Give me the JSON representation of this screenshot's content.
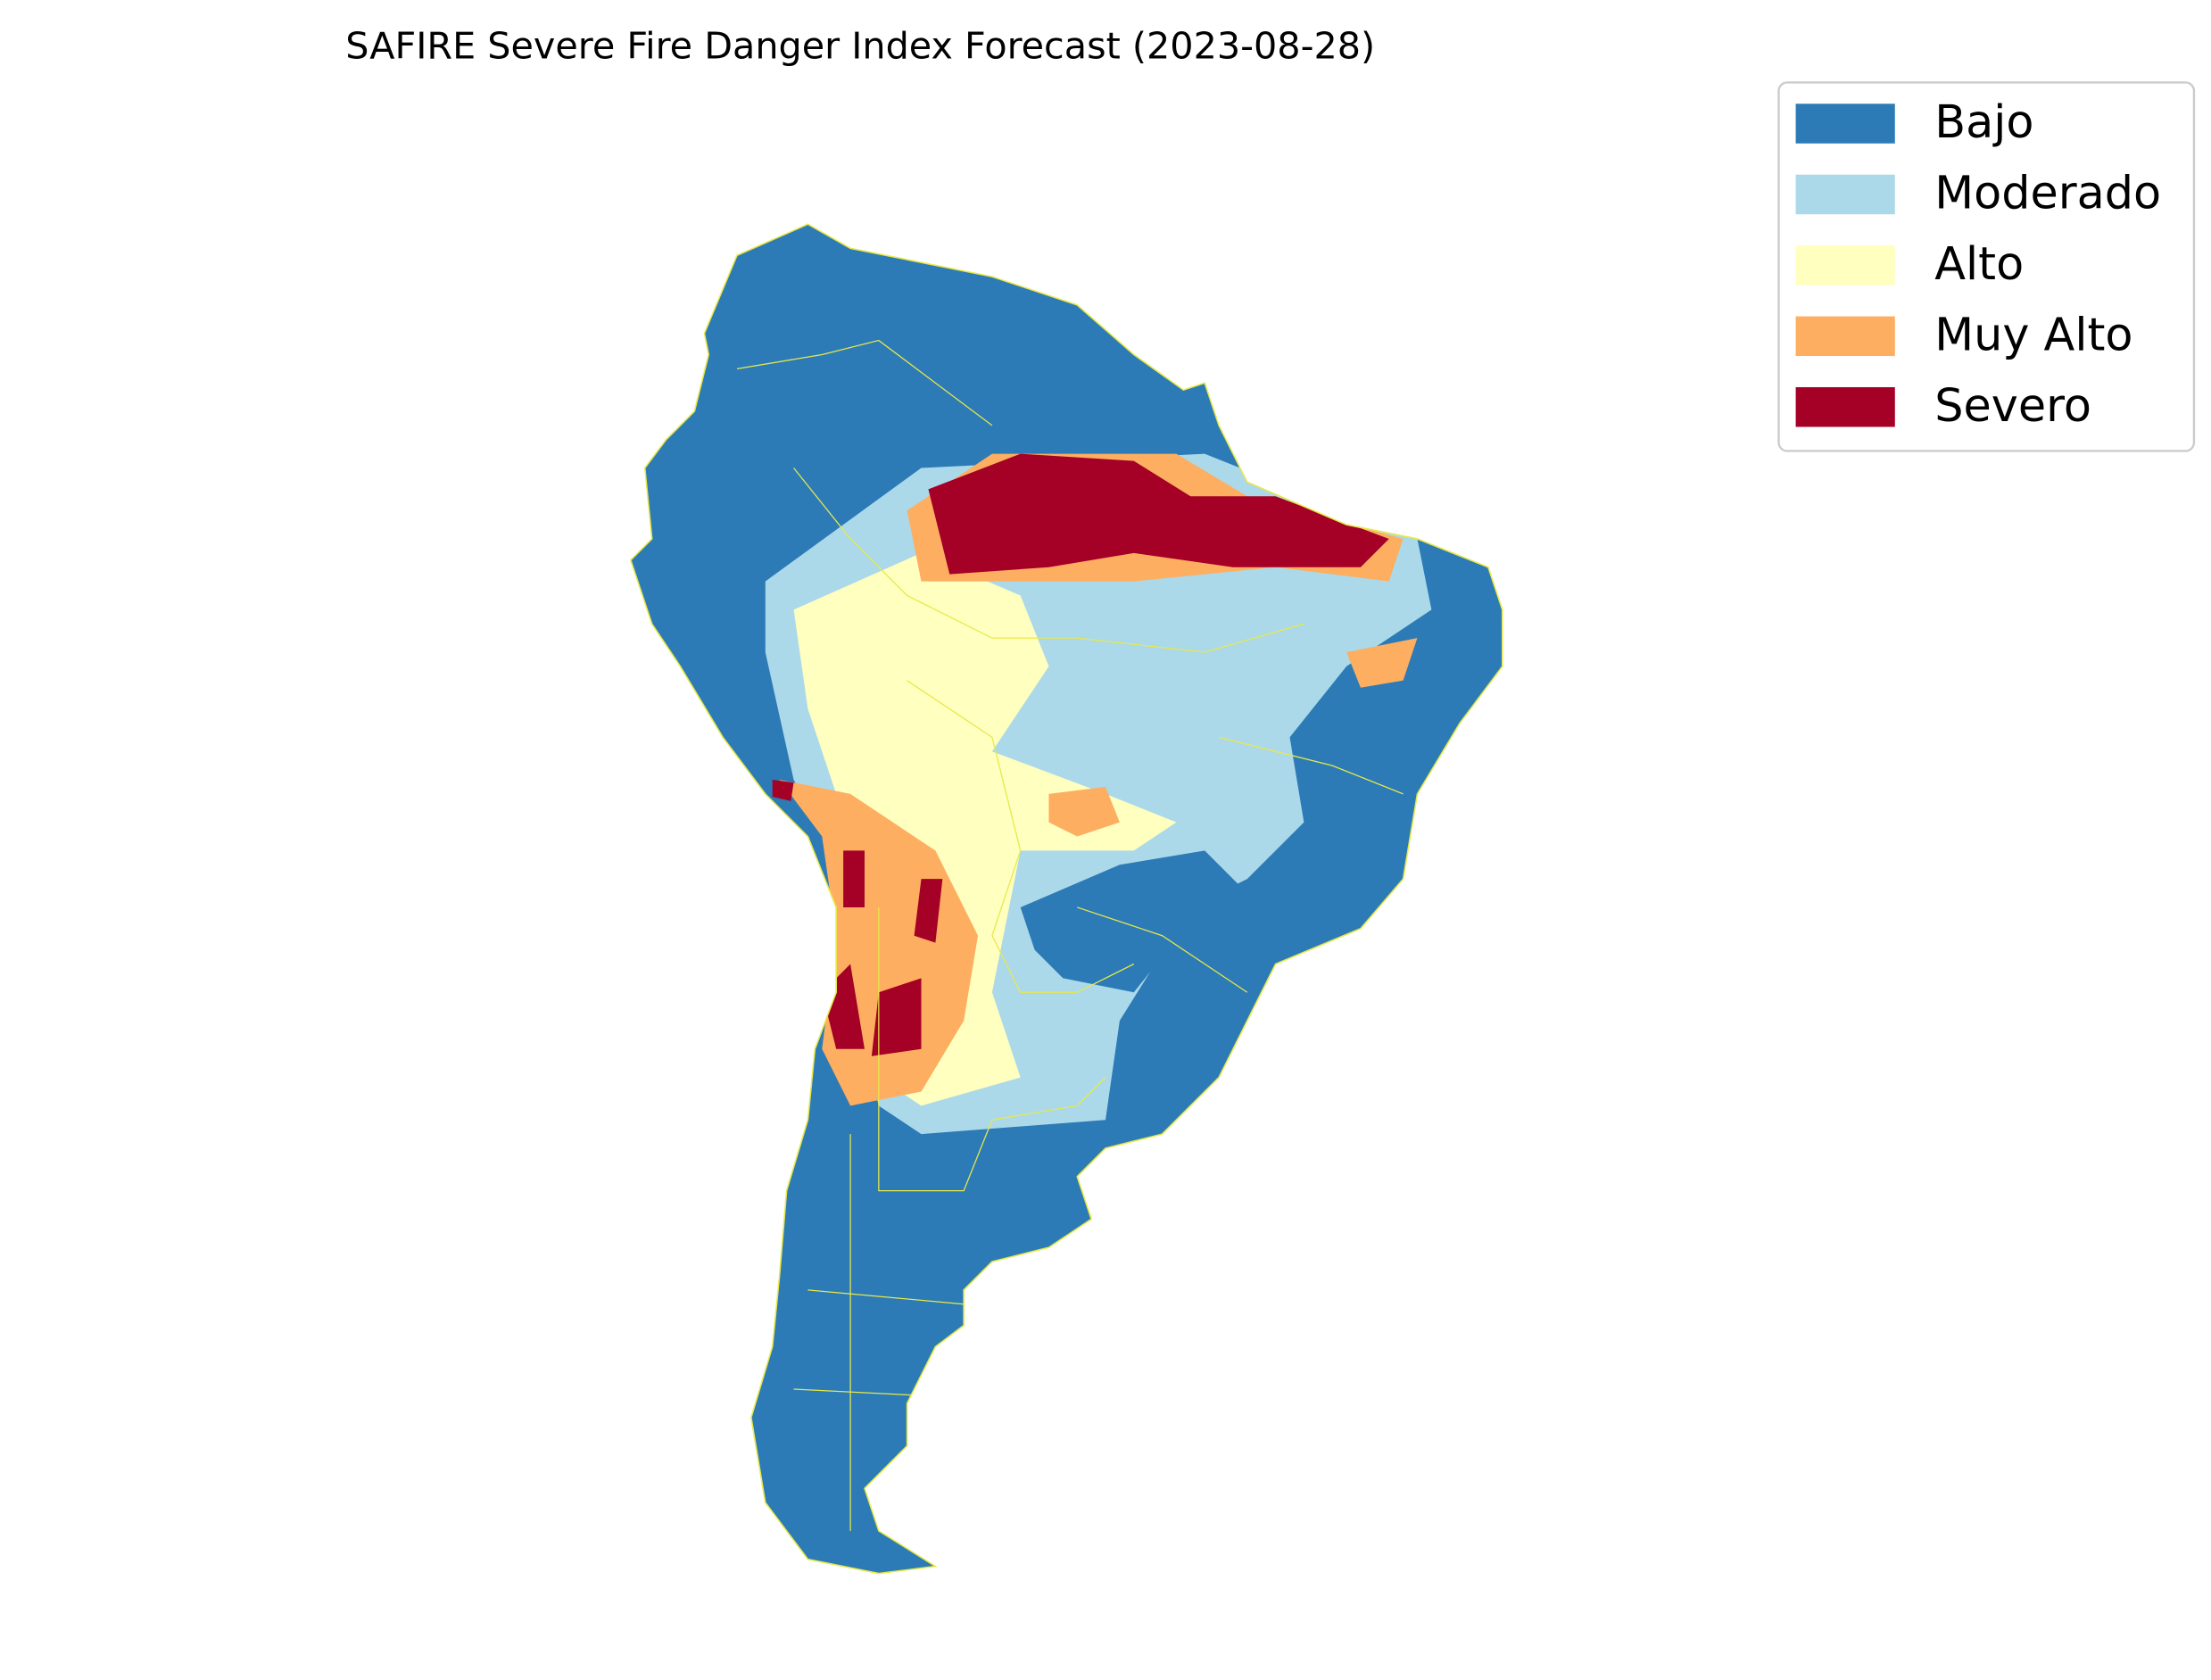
{
  "title": "SAFIRE Severe Fire Danger Index Forecast (2023-08-28)",
  "legend": [
    {
      "label": "Bajo",
      "color": "#2c7bb6"
    },
    {
      "label": "Moderado",
      "color": "#abd9e9"
    },
    {
      "label": "Alto",
      "color": "#ffffbf"
    },
    {
      "label": "Muy Alto",
      "color": "#fdae61"
    },
    {
      "label": "Severo",
      "color": "#a50026"
    }
  ]
}
